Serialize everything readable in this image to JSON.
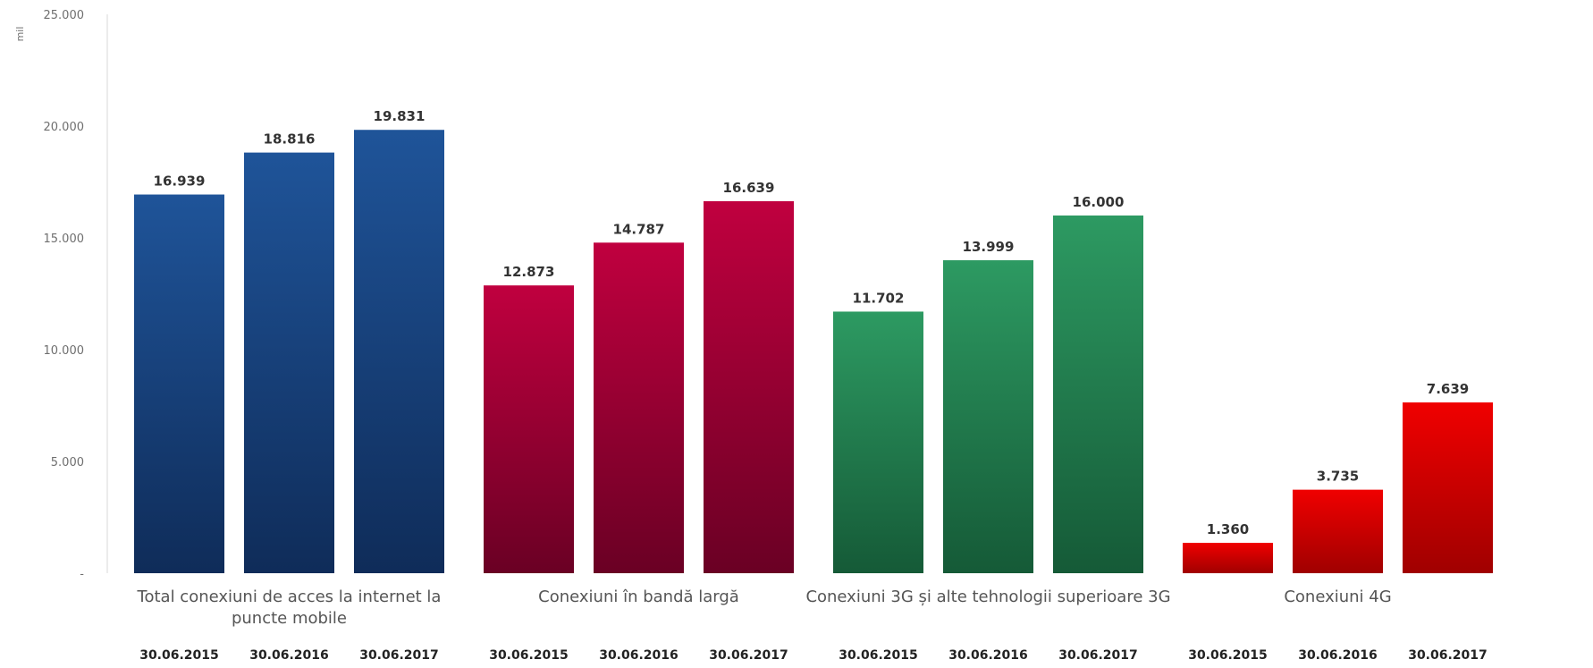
{
  "chart_data": {
    "type": "bar",
    "unit_label": "mil",
    "ylim": [
      0,
      25000
    ],
    "y_ticks": [
      {
        "value": 0,
        "label": "-"
      },
      {
        "value": 5000,
        "label": "5.000"
      },
      {
        "value": 10000,
        "label": "10.000"
      },
      {
        "value": 15000,
        "label": "15.000"
      },
      {
        "value": 20000,
        "label": "20.000"
      },
      {
        "value": 25000,
        "label": "25.000"
      }
    ],
    "grid": false,
    "legend": "none",
    "groups": [
      {
        "name": "Total conexiuni de acces la internet la puncte mobile",
        "label_lines": [
          "Total conexiuni de acces la internet la",
          "puncte mobile"
        ],
        "color_top": "#1f5499",
        "color_bottom": "#0f2c59",
        "categories": [
          "30.06.2015",
          "30.06.2016",
          "30.06.2017"
        ],
        "values": [
          16939,
          18816,
          19831
        ],
        "value_labels": [
          "16.939",
          "18.816",
          "19.831"
        ]
      },
      {
        "name": "Conexiuni în bandă largă",
        "label_lines": [
          "Conexiuni în bandă largă"
        ],
        "color_top": "#c0003f",
        "color_bottom": "#6a0024",
        "categories": [
          "30.06.2015",
          "30.06.2016",
          "30.06.2017"
        ],
        "values": [
          12873,
          14787,
          16639
        ],
        "value_labels": [
          "12.873",
          "14.787",
          "16.639"
        ]
      },
      {
        "name": "Conexiuni 3G și alte tehnologii superioare 3G",
        "label_lines": [
          "Conexiuni 3G și alte tehnologii superioare 3G"
        ],
        "color_top": "#2d9a62",
        "color_bottom": "#155a37",
        "categories": [
          "30.06.2015",
          "30.06.2016",
          "30.06.2017"
        ],
        "values": [
          11702,
          13999,
          16000
        ],
        "value_labels": [
          "11.702",
          "13.999",
          "16.000"
        ]
      },
      {
        "name": "Conexiuni 4G",
        "label_lines": [
          "Conexiuni 4G"
        ],
        "color_top": "#f00000",
        "color_bottom": "#a00000",
        "categories": [
          "30.06.2015",
          "30.06.2016",
          "30.06.2017"
        ],
        "values": [
          1360,
          3735,
          7639
        ],
        "value_labels": [
          "1.360",
          "3.735",
          "7.639"
        ]
      }
    ]
  }
}
